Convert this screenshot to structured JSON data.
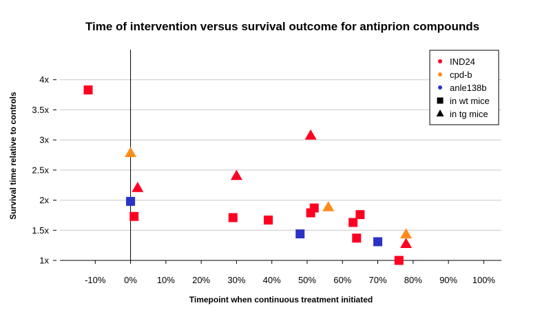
{
  "chart_data": {
    "type": "scatter",
    "title": "Time of intervention versus survival outcome for antiprion compounds",
    "xlabel": "Timepoint when continuous treatment initiated",
    "ylabel": "Survival time relative to controls",
    "xlim": [
      -20,
      105
    ],
    "ylim": [
      1,
      4.5
    ],
    "x_ticks": [
      -10,
      0,
      10,
      20,
      30,
      40,
      50,
      60,
      70,
      80,
      90,
      100
    ],
    "x_tick_labels": [
      "-10%",
      "0%",
      "10%",
      "20%",
      "30%",
      "40%",
      "50%",
      "60%",
      "70%",
      "80%",
      "90%",
      "100%"
    ],
    "y_ticks": [
      1,
      1.5,
      2,
      2.5,
      3,
      3.5,
      4
    ],
    "y_tick_labels": [
      "1x",
      "1.5x",
      "2x",
      "2.5x",
      "3x",
      "3.5x",
      "4x"
    ],
    "grid": "horizontal",
    "vline_x": 0,
    "legend_position": "top-right",
    "legend": [
      {
        "label": "IND24",
        "kind": "color",
        "color": "#FF0022"
      },
      {
        "label": "cpd-b",
        "kind": "color",
        "color": "#FF8C1A"
      },
      {
        "label": "anle138b",
        "kind": "color",
        "color": "#2A33C4"
      },
      {
        "label": "in wt mice",
        "kind": "square",
        "color": "#000000"
      },
      {
        "label": "in tg mice",
        "kind": "triangle",
        "color": "#000000"
      }
    ],
    "series": [
      {
        "name": "IND24",
        "color": "#FF0022",
        "points": [
          {
            "x": -12,
            "y": 3.83,
            "shape": "square"
          },
          {
            "x": 1,
            "y": 1.73,
            "shape": "square"
          },
          {
            "x": 29,
            "y": 1.71,
            "shape": "square"
          },
          {
            "x": 39,
            "y": 1.67,
            "shape": "square"
          },
          {
            "x": 51,
            "y": 1.79,
            "shape": "square"
          },
          {
            "x": 52,
            "y": 1.87,
            "shape": "square"
          },
          {
            "x": 63,
            "y": 1.63,
            "shape": "square"
          },
          {
            "x": 64,
            "y": 1.37,
            "shape": "square"
          },
          {
            "x": 65,
            "y": 1.76,
            "shape": "square"
          },
          {
            "x": 76,
            "y": 1.0,
            "shape": "square"
          },
          {
            "x": 2,
            "y": 2.2,
            "shape": "triangle"
          },
          {
            "x": 30,
            "y": 2.4,
            "shape": "triangle"
          },
          {
            "x": 51,
            "y": 3.07,
            "shape": "triangle"
          },
          {
            "x": 78,
            "y": 1.27,
            "shape": "triangle"
          }
        ]
      },
      {
        "name": "cpd-b",
        "color": "#FF8C1A",
        "points": [
          {
            "x": 0,
            "y": 2.78,
            "shape": "triangle"
          },
          {
            "x": 56,
            "y": 1.88,
            "shape": "triangle"
          },
          {
            "x": 78,
            "y": 1.43,
            "shape": "triangle"
          }
        ]
      },
      {
        "name": "anle138b",
        "color": "#2A33C4",
        "points": [
          {
            "x": 0,
            "y": 1.98,
            "shape": "square"
          },
          {
            "x": 48,
            "y": 1.44,
            "shape": "square"
          },
          {
            "x": 70,
            "y": 1.31,
            "shape": "square"
          }
        ]
      }
    ]
  }
}
